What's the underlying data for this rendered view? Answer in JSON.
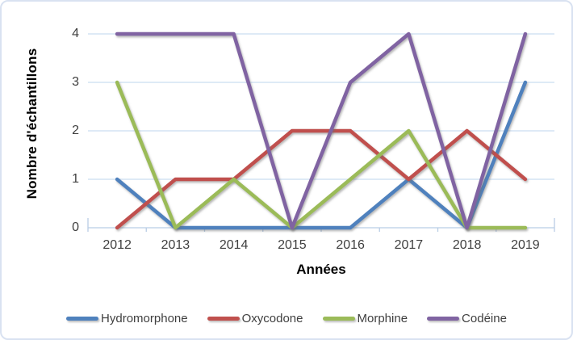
{
  "chart_data": {
    "type": "line",
    "title": "",
    "categories": [
      "2012",
      "2013",
      "2014",
      "2015",
      "2016",
      "2017",
      "2018",
      "2019"
    ],
    "series": [
      {
        "name": "Hydromorphone",
        "color": "#4F81BD",
        "values": [
          1,
          0,
          0,
          0,
          0,
          1,
          0,
          3
        ]
      },
      {
        "name": "Oxycodone",
        "color": "#C0504D",
        "values": [
          0,
          1,
          1,
          2,
          2,
          1,
          2,
          1
        ]
      },
      {
        "name": "Morphine",
        "color": "#9BBB59",
        "values": [
          3,
          0,
          1,
          0,
          1,
          2,
          0,
          0
        ]
      },
      {
        "name": "Codéine",
        "color": "#8064A2",
        "values": [
          4,
          4,
          4,
          0,
          3,
          4,
          0,
          4
        ]
      }
    ],
    "xlabel": "Années",
    "ylabel": "Nombre d'échantillons",
    "yticks": [
      0,
      1,
      2,
      3,
      4
    ],
    "ylim": [
      0,
      4
    ],
    "grid": true,
    "legend_position": "bottom",
    "colors": {
      "gridline": "#CBDDF1",
      "axis_line": "#B9CDE5",
      "frame_border": "#D9E2F1",
      "tick_text": "#3F3F3F",
      "title_text": "#000000",
      "background": "#FFFFFF"
    }
  }
}
